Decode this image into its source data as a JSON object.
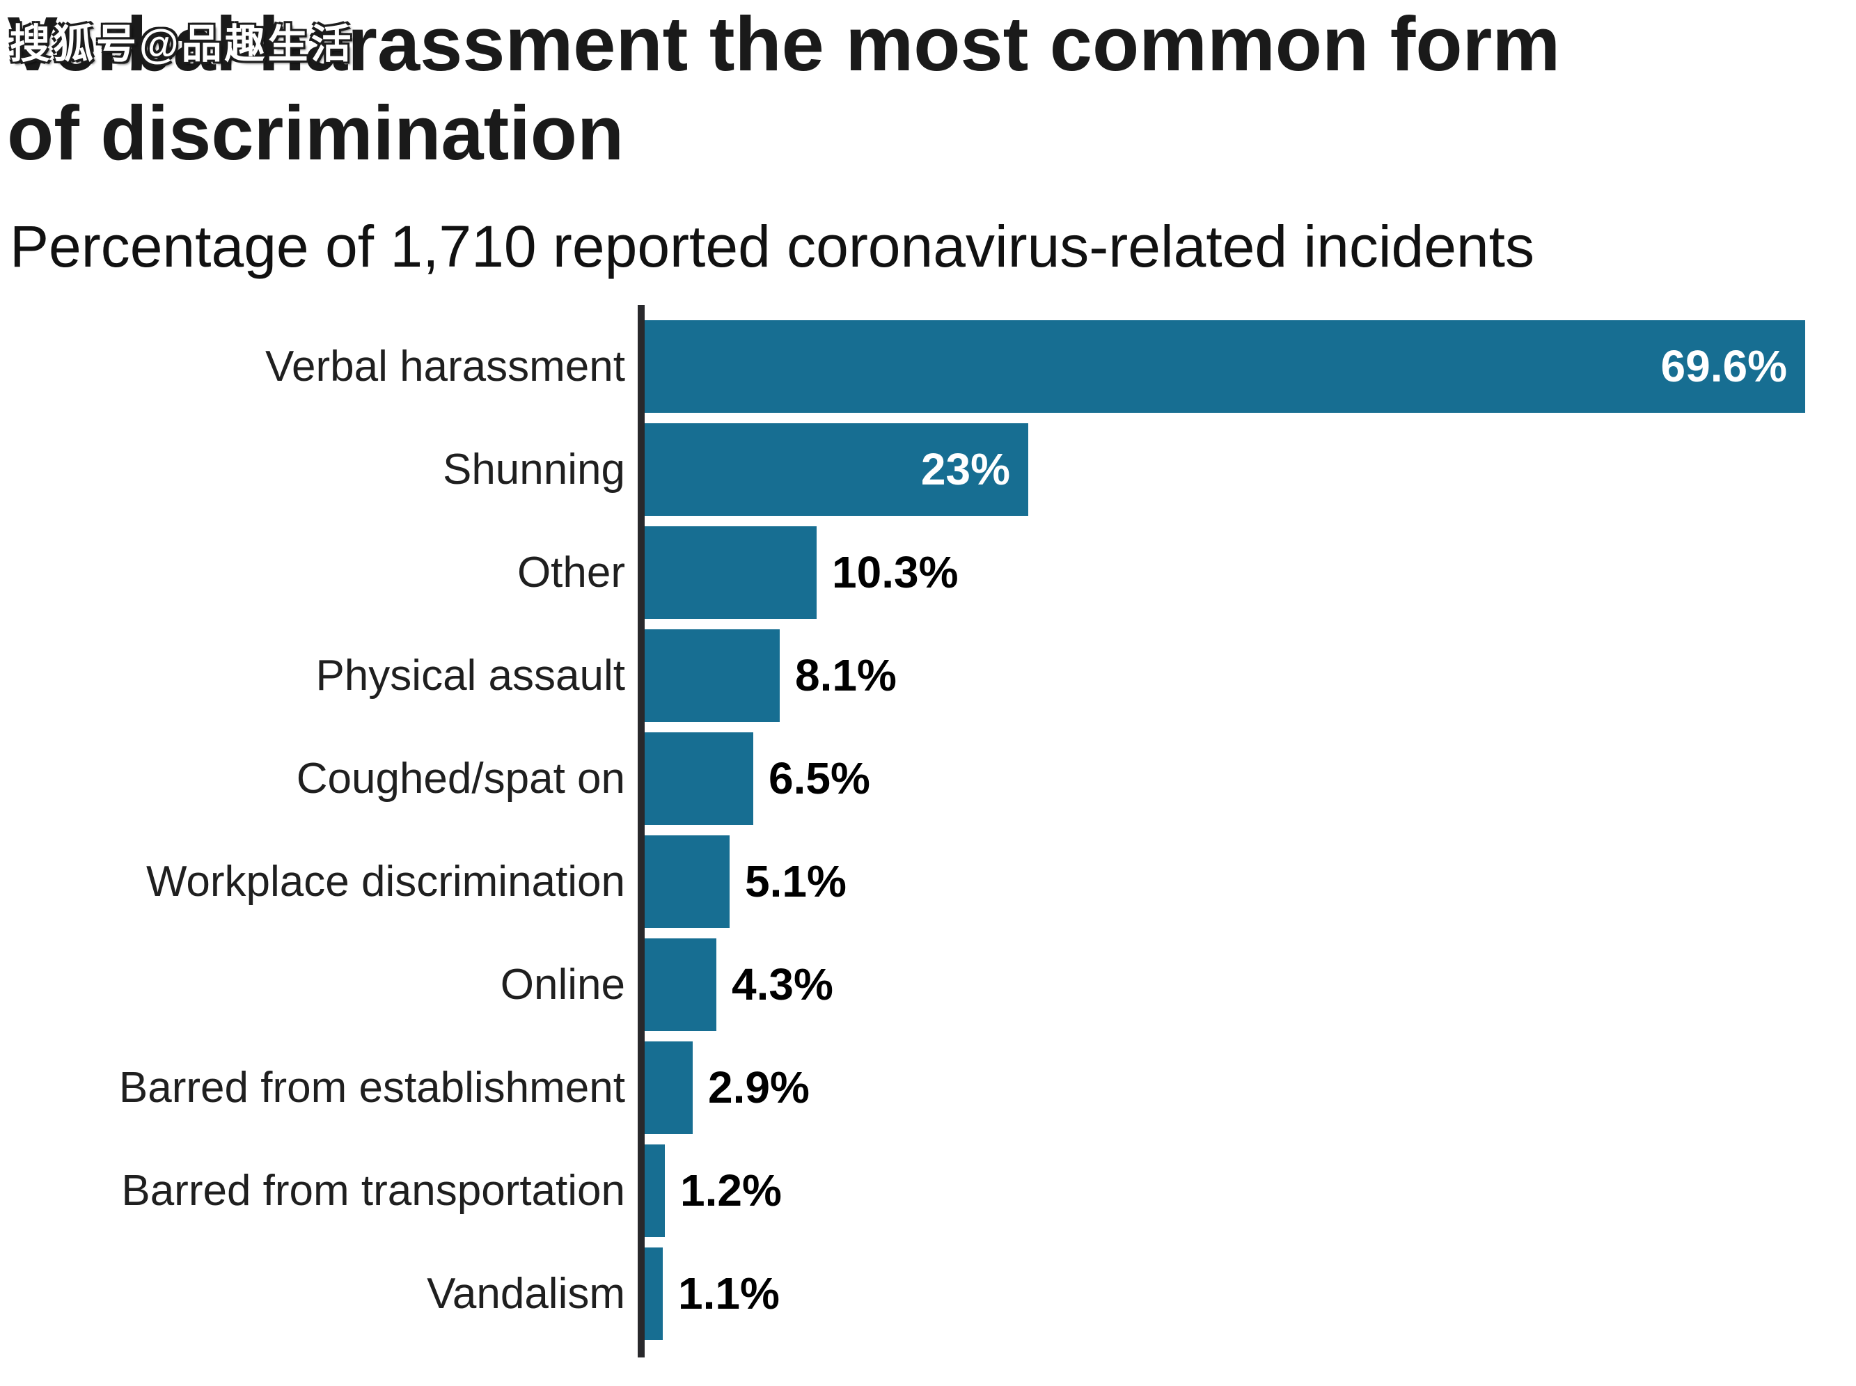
{
  "watermark": {
    "text": "搜狐号@品趣生活"
  },
  "header": {
    "title_line1": "Verbal harassment the most common form",
    "title_line2": "of discrimination",
    "subtitle": "Percentage of 1,710 reported coronavirus-related incidents"
  },
  "colors": {
    "background": "#FFFFFF",
    "bar": "#176E92",
    "axis": "#29292C",
    "title_text": "#1A1A1A",
    "category_text": "#1F1F1F",
    "value_inside": "#FFFFFF",
    "value_outside": "#000000"
  },
  "chart_data": {
    "type": "bar",
    "orientation": "horizontal",
    "title": "Verbal harassment the most common form of discrimination",
    "subtitle": "Percentage of 1,710 reported coronavirus-related incidents",
    "xlabel": "",
    "ylabel": "",
    "xlim": [
      0,
      69.6
    ],
    "grid": false,
    "legend": false,
    "categories": [
      "Verbal harassment",
      "Shunning",
      "Other",
      "Physical assault",
      "Coughed/spat on",
      "Workplace discrimination",
      "Online",
      "Barred from establishment",
      "Barred from transportation",
      "Vandalism"
    ],
    "values": [
      69.6,
      23,
      10.3,
      8.1,
      6.5,
      5.1,
      4.3,
      2.9,
      1.2,
      1.1
    ],
    "value_labels": [
      "69.6%",
      "23%",
      "10.3%",
      "8.1%",
      "6.5%",
      "5.1%",
      "4.3%",
      "2.9%",
      "1.2%",
      "1.1%"
    ],
    "value_label_placement": [
      "inside",
      "inside",
      "outside",
      "outside",
      "outside",
      "outside",
      "outside",
      "outside",
      "outside",
      "outside"
    ]
  }
}
